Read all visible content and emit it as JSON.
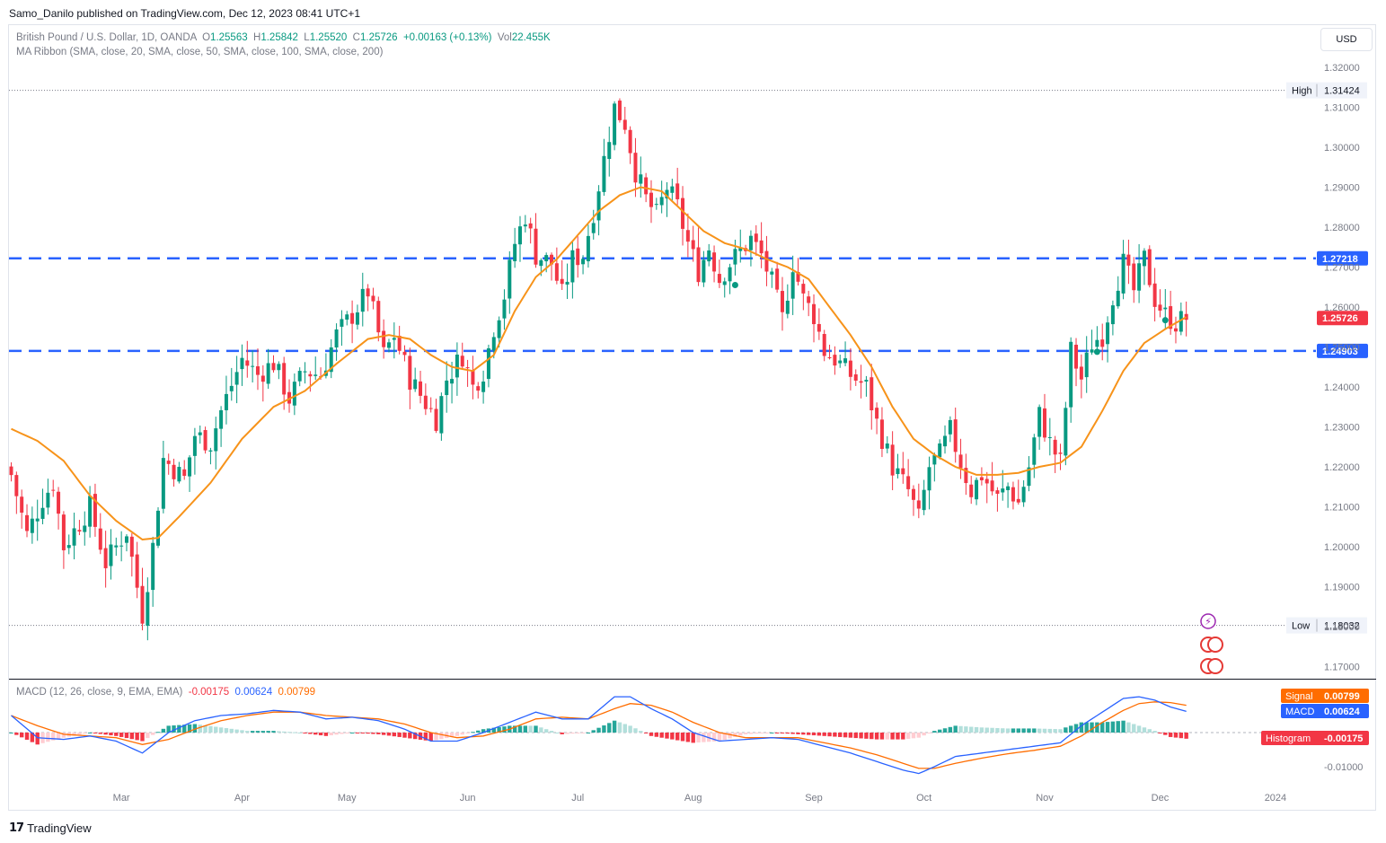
{
  "publisher": "Samo_Danilo published on TradingView.com, Dec 12, 2023 08:41 UTC+1",
  "currency_button": "USD",
  "footer_brand": "TradingView",
  "colors": {
    "up": "#089981",
    "down": "#f23645",
    "ma": "#f7931a",
    "level": "#2962ff",
    "macd": "#2962ff",
    "signal": "#ff6d00",
    "hist_up_strong": "#26a69a",
    "hist_up_weak": "#b2dfdb",
    "hist_down_strong": "#f23645",
    "hist_down_weak": "#ffcdd2"
  },
  "legend": {
    "symbol": "British Pound / U.S. Dollar, 1D, OANDA",
    "o_label": "O",
    "o": "1.25563",
    "h_label": "H",
    "h": "1.25842",
    "l_label": "L",
    "l": "1.25520",
    "c_label": "C",
    "c": "1.25726",
    "change": "+0.00163 (+0.13%)",
    "vol_label": "Vol",
    "vol": "22.455K",
    "ma_ribbon": "MA Ribbon (SMA, close, 20, SMA, close, 50, SMA, close, 100, SMA, close, 200)",
    "macd_title": "MACD (12, 26, close, 9, EMA, EMA)",
    "macd_hist": "-0.00175",
    "macd_macd": "0.00624",
    "macd_signal": "0.00799"
  },
  "chart_data": [
    {
      "type": "candlestick",
      "title": "British Pound / U.S. Dollar, 1D, OANDA",
      "ylim": [
        1.165,
        1.325
      ],
      "y_ticks": [
        "1.32000",
        "1.31000",
        "1.30000",
        "1.29000",
        "1.28000",
        "1.27000",
        "1.26000",
        "1.25000",
        "1.24000",
        "1.23000",
        "1.22000",
        "1.21000",
        "1.20000",
        "1.19000",
        "1.18000",
        "1.17000"
      ],
      "x_ticks": [
        {
          "label": "Mar",
          "index": 21
        },
        {
          "label": "Apr",
          "index": 44
        },
        {
          "label": "May",
          "index": 64
        },
        {
          "label": "Jun",
          "index": 87
        },
        {
          "label": "Jul",
          "index": 108
        },
        {
          "label": "Aug",
          "index": 130
        },
        {
          "label": "Sep",
          "index": 153
        },
        {
          "label": "Oct",
          "index": 174
        },
        {
          "label": "Nov",
          "index": 197
        },
        {
          "label": "Dec",
          "index": 219
        },
        {
          "label": "2024",
          "index": 241
        }
      ],
      "n_slots": 247,
      "anchors": [
        {
          "i": 0,
          "c": 1.218
        },
        {
          "i": 3,
          "c": 1.203
        },
        {
          "i": 6,
          "c": 1.212
        },
        {
          "i": 8,
          "c": 1.216
        },
        {
          "i": 10,
          "c": 1.2
        },
        {
          "i": 15,
          "c": 1.21
        },
        {
          "i": 18,
          "c": 1.196
        },
        {
          "i": 22,
          "c": 1.204
        },
        {
          "i": 25,
          "c": 1.183
        },
        {
          "i": 27,
          "c": 1.2
        },
        {
          "i": 29,
          "c": 1.222
        },
        {
          "i": 33,
          "c": 1.217
        },
        {
          "i": 35,
          "c": 1.228
        },
        {
          "i": 38,
          "c": 1.226
        },
        {
          "i": 40,
          "c": 1.234
        },
        {
          "i": 44,
          "c": 1.247
        },
        {
          "i": 47,
          "c": 1.243
        },
        {
          "i": 50,
          "c": 1.246
        },
        {
          "i": 53,
          "c": 1.237
        },
        {
          "i": 56,
          "c": 1.244
        },
        {
          "i": 59,
          "c": 1.243
        },
        {
          "i": 62,
          "c": 1.253
        },
        {
          "i": 65,
          "c": 1.258
        },
        {
          "i": 68,
          "c": 1.264
        },
        {
          "i": 71,
          "c": 1.248
        },
        {
          "i": 73,
          "c": 1.253
        },
        {
          "i": 76,
          "c": 1.242
        },
        {
          "i": 79,
          "c": 1.236
        },
        {
          "i": 81,
          "c": 1.232
        },
        {
          "i": 83,
          "c": 1.242
        },
        {
          "i": 86,
          "c": 1.248
        },
        {
          "i": 88,
          "c": 1.24
        },
        {
          "i": 90,
          "c": 1.244
        },
        {
          "i": 92,
          "c": 1.255
        },
        {
          "i": 94,
          "c": 1.263
        },
        {
          "i": 96,
          "c": 1.276
        },
        {
          "i": 98,
          "c": 1.283
        },
        {
          "i": 100,
          "c": 1.273
        },
        {
          "i": 103,
          "c": 1.271
        },
        {
          "i": 105,
          "c": 1.263
        },
        {
          "i": 107,
          "c": 1.272
        },
        {
          "i": 109,
          "c": 1.273
        },
        {
          "i": 111,
          "c": 1.284
        },
        {
          "i": 113,
          "c": 1.297
        },
        {
          "i": 115,
          "c": 1.31
        },
        {
          "i": 117,
          "c": 1.306
        },
        {
          "i": 119,
          "c": 1.294
        },
        {
          "i": 121,
          "c": 1.287
        },
        {
          "i": 123,
          "c": 1.283
        },
        {
          "i": 125,
          "c": 1.29
        },
        {
          "i": 127,
          "c": 1.285
        },
        {
          "i": 129,
          "c": 1.276
        },
        {
          "i": 131,
          "c": 1.269
        },
        {
          "i": 133,
          "c": 1.275
        },
        {
          "i": 135,
          "c": 1.267
        },
        {
          "i": 137,
          "c": 1.271
        },
        {
          "i": 139,
          "c": 1.274
        },
        {
          "i": 141,
          "c": 1.277
        },
        {
          "i": 143,
          "c": 1.273
        },
        {
          "i": 145,
          "c": 1.266
        },
        {
          "i": 147,
          "c": 1.257
        },
        {
          "i": 149,
          "c": 1.271
        },
        {
          "i": 151,
          "c": 1.262
        },
        {
          "i": 153,
          "c": 1.258
        },
        {
          "i": 155,
          "c": 1.249
        },
        {
          "i": 157,
          "c": 1.247
        },
        {
          "i": 160,
          "c": 1.243
        },
        {
          "i": 163,
          "c": 1.24
        },
        {
          "i": 165,
          "c": 1.231
        },
        {
          "i": 168,
          "c": 1.22
        },
        {
          "i": 171,
          "c": 1.214
        },
        {
          "i": 173,
          "c": 1.207
        },
        {
          "i": 175,
          "c": 1.22
        },
        {
          "i": 177,
          "c": 1.223
        },
        {
          "i": 179,
          "c": 1.229
        },
        {
          "i": 181,
          "c": 1.221
        },
        {
          "i": 183,
          "c": 1.214
        },
        {
          "i": 185,
          "c": 1.218
        },
        {
          "i": 188,
          "c": 1.212
        },
        {
          "i": 190,
          "c": 1.215
        },
        {
          "i": 192,
          "c": 1.211
        },
        {
          "i": 194,
          "c": 1.22
        },
        {
          "i": 196,
          "c": 1.233
        },
        {
          "i": 198,
          "c": 1.226
        },
        {
          "i": 200,
          "c": 1.221
        },
        {
          "i": 202,
          "c": 1.249
        },
        {
          "i": 204,
          "c": 1.242
        },
        {
          "i": 206,
          "c": 1.251
        },
        {
          "i": 208,
          "c": 1.253
        },
        {
          "i": 210,
          "c": 1.263
        },
        {
          "i": 212,
          "c": 1.271
        },
        {
          "i": 214,
          "c": 1.264
        },
        {
          "i": 216,
          "c": 1.272
        },
        {
          "i": 218,
          "c": 1.262
        },
        {
          "i": 220,
          "c": 1.258
        },
        {
          "i": 222,
          "c": 1.256
        },
        {
          "i": 224,
          "c": 1.2573
        }
      ],
      "ma20_anchors": [
        {
          "i": 0,
          "v": 1.2295
        },
        {
          "i": 5,
          "v": 1.2265
        },
        {
          "i": 10,
          "v": 1.2215
        },
        {
          "i": 15,
          "v": 1.2128
        },
        {
          "i": 20,
          "v": 1.2065
        },
        {
          "i": 25,
          "v": 1.2018
        },
        {
          "i": 28,
          "v": 1.2022
        },
        {
          "i": 32,
          "v": 1.2075
        },
        {
          "i": 38,
          "v": 1.216
        },
        {
          "i": 44,
          "v": 1.227
        },
        {
          "i": 50,
          "v": 1.235
        },
        {
          "i": 56,
          "v": 1.239
        },
        {
          "i": 62,
          "v": 1.2458
        },
        {
          "i": 68,
          "v": 1.252
        },
        {
          "i": 72,
          "v": 1.253
        },
        {
          "i": 76,
          "v": 1.252
        },
        {
          "i": 80,
          "v": 1.248
        },
        {
          "i": 84,
          "v": 1.245
        },
        {
          "i": 88,
          "v": 1.244
        },
        {
          "i": 92,
          "v": 1.248
        },
        {
          "i": 96,
          "v": 1.259
        },
        {
          "i": 100,
          "v": 1.2675
        },
        {
          "i": 104,
          "v": 1.272
        },
        {
          "i": 108,
          "v": 1.278
        },
        {
          "i": 112,
          "v": 1.284
        },
        {
          "i": 116,
          "v": 1.288
        },
        {
          "i": 120,
          "v": 1.29
        },
        {
          "i": 124,
          "v": 1.289
        },
        {
          "i": 128,
          "v": 1.284
        },
        {
          "i": 132,
          "v": 1.279
        },
        {
          "i": 136,
          "v": 1.276
        },
        {
          "i": 140,
          "v": 1.2745
        },
        {
          "i": 144,
          "v": 1.272
        },
        {
          "i": 148,
          "v": 1.27
        },
        {
          "i": 152,
          "v": 1.267
        },
        {
          "i": 156,
          "v": 1.26
        },
        {
          "i": 160,
          "v": 1.253
        },
        {
          "i": 164,
          "v": 1.245
        },
        {
          "i": 168,
          "v": 1.235
        },
        {
          "i": 172,
          "v": 1.227
        },
        {
          "i": 176,
          "v": 1.223
        },
        {
          "i": 180,
          "v": 1.22
        },
        {
          "i": 184,
          "v": 1.218
        },
        {
          "i": 188,
          "v": 1.218
        },
        {
          "i": 192,
          "v": 1.2185
        },
        {
          "i": 196,
          "v": 1.22
        },
        {
          "i": 200,
          "v": 1.221
        },
        {
          "i": 204,
          "v": 1.225
        },
        {
          "i": 208,
          "v": 1.234
        },
        {
          "i": 212,
          "v": 1.244
        },
        {
          "i": 216,
          "v": 1.251
        },
        {
          "i": 220,
          "v": 1.2545
        },
        {
          "i": 224,
          "v": 1.2575
        }
      ],
      "horizontal_levels": [
        {
          "value": 1.31424,
          "label": "High",
          "price": "1.31424",
          "style": "dotted"
        },
        {
          "value": 1.27218,
          "label": "",
          "price": "1.27218",
          "style": "dashed"
        },
        {
          "value": 1.24903,
          "label": "",
          "price": "1.24903",
          "style": "dashed"
        },
        {
          "value": 1.18032,
          "label": "Low",
          "price": "1.18032",
          "style": "dotted"
        }
      ],
      "last_price": "1.25726"
    },
    {
      "type": "macd",
      "title": "MACD (12, 26, close, 9, EMA, EMA)",
      "ylim": [
        -0.0125,
        0.0125
      ],
      "y_ticks": [
        "-0.01000"
      ],
      "macd_anchors": [
        {
          "i": 0,
          "v": 0.005
        },
        {
          "i": 5,
          "v": -0.0015
        },
        {
          "i": 10,
          "v": -0.002
        },
        {
          "i": 15,
          "v": -0.001
        },
        {
          "i": 20,
          "v": -0.0025
        },
        {
          "i": 25,
          "v": -0.006
        },
        {
          "i": 30,
          "v": 0.0
        },
        {
          "i": 35,
          "v": 0.0035
        },
        {
          "i": 40,
          "v": 0.005
        },
        {
          "i": 45,
          "v": 0.0055
        },
        {
          "i": 50,
          "v": 0.0065
        },
        {
          "i": 55,
          "v": 0.006
        },
        {
          "i": 60,
          "v": 0.004
        },
        {
          "i": 65,
          "v": 0.0045
        },
        {
          "i": 70,
          "v": 0.0035
        },
        {
          "i": 75,
          "v": 0.001
        },
        {
          "i": 80,
          "v": -0.0025
        },
        {
          "i": 85,
          "v": -0.0025
        },
        {
          "i": 90,
          "v": 0.0
        },
        {
          "i": 95,
          "v": 0.003
        },
        {
          "i": 100,
          "v": 0.006
        },
        {
          "i": 105,
          "v": 0.004
        },
        {
          "i": 110,
          "v": 0.004
        },
        {
          "i": 115,
          "v": 0.0105
        },
        {
          "i": 118,
          "v": 0.0105
        },
        {
          "i": 122,
          "v": 0.007
        },
        {
          "i": 126,
          "v": 0.004
        },
        {
          "i": 130,
          "v": 0.0
        },
        {
          "i": 135,
          "v": -0.0025
        },
        {
          "i": 140,
          "v": -0.002
        },
        {
          "i": 145,
          "v": -0.0015
        },
        {
          "i": 150,
          "v": -0.002
        },
        {
          "i": 155,
          "v": -0.004
        },
        {
          "i": 160,
          "v": -0.006
        },
        {
          "i": 165,
          "v": -0.0085
        },
        {
          "i": 170,
          "v": -0.011
        },
        {
          "i": 173,
          "v": -0.012
        },
        {
          "i": 176,
          "v": -0.01
        },
        {
          "i": 180,
          "v": -0.007
        },
        {
          "i": 185,
          "v": -0.006
        },
        {
          "i": 190,
          "v": -0.005
        },
        {
          "i": 195,
          "v": -0.004
        },
        {
          "i": 200,
          "v": -0.003
        },
        {
          "i": 204,
          "v": 0.002
        },
        {
          "i": 208,
          "v": 0.006
        },
        {
          "i": 212,
          "v": 0.01
        },
        {
          "i": 215,
          "v": 0.0105
        },
        {
          "i": 218,
          "v": 0.0095
        },
        {
          "i": 221,
          "v": 0.0075
        },
        {
          "i": 224,
          "v": 0.0062
        }
      ],
      "signal_anchors": [
        {
          "i": 0,
          "v": 0.005
        },
        {
          "i": 5,
          "v": 0.002
        },
        {
          "i": 10,
          "v": -0.0005
        },
        {
          "i": 15,
          "v": -0.001
        },
        {
          "i": 20,
          "v": -0.0015
        },
        {
          "i": 25,
          "v": -0.0035
        },
        {
          "i": 30,
          "v": -0.002
        },
        {
          "i": 35,
          "v": 0.001
        },
        {
          "i": 40,
          "v": 0.0035
        },
        {
          "i": 45,
          "v": 0.005
        },
        {
          "i": 50,
          "v": 0.006
        },
        {
          "i": 55,
          "v": 0.006
        },
        {
          "i": 60,
          "v": 0.005
        },
        {
          "i": 65,
          "v": 0.0045
        },
        {
          "i": 70,
          "v": 0.004
        },
        {
          "i": 75,
          "v": 0.0025
        },
        {
          "i": 80,
          "v": 0.0
        },
        {
          "i": 85,
          "v": -0.0015
        },
        {
          "i": 90,
          "v": -0.001
        },
        {
          "i": 95,
          "v": 0.001
        },
        {
          "i": 100,
          "v": 0.004
        },
        {
          "i": 105,
          "v": 0.0045
        },
        {
          "i": 110,
          "v": 0.004
        },
        {
          "i": 115,
          "v": 0.007
        },
        {
          "i": 118,
          "v": 0.0085
        },
        {
          "i": 122,
          "v": 0.008
        },
        {
          "i": 126,
          "v": 0.006
        },
        {
          "i": 130,
          "v": 0.003
        },
        {
          "i": 135,
          "v": 0.0
        },
        {
          "i": 140,
          "v": -0.0015
        },
        {
          "i": 145,
          "v": -0.0015
        },
        {
          "i": 150,
          "v": -0.0015
        },
        {
          "i": 155,
          "v": -0.003
        },
        {
          "i": 160,
          "v": -0.0045
        },
        {
          "i": 165,
          "v": -0.0065
        },
        {
          "i": 170,
          "v": -0.009
        },
        {
          "i": 173,
          "v": -0.0105
        },
        {
          "i": 176,
          "v": -0.0105
        },
        {
          "i": 180,
          "v": -0.009
        },
        {
          "i": 185,
          "v": -0.0075
        },
        {
          "i": 190,
          "v": -0.0062
        },
        {
          "i": 195,
          "v": -0.0052
        },
        {
          "i": 200,
          "v": -0.004
        },
        {
          "i": 204,
          "v": -0.001
        },
        {
          "i": 208,
          "v": 0.003
        },
        {
          "i": 212,
          "v": 0.0065
        },
        {
          "i": 215,
          "v": 0.0085
        },
        {
          "i": 218,
          "v": 0.009
        },
        {
          "i": 221,
          "v": 0.0088
        },
        {
          "i": 224,
          "v": 0.008
        }
      ],
      "legend_values": {
        "Signal": "0.00799",
        "MACD": "0.00624",
        "Histogram": "-0.00175"
      }
    }
  ]
}
